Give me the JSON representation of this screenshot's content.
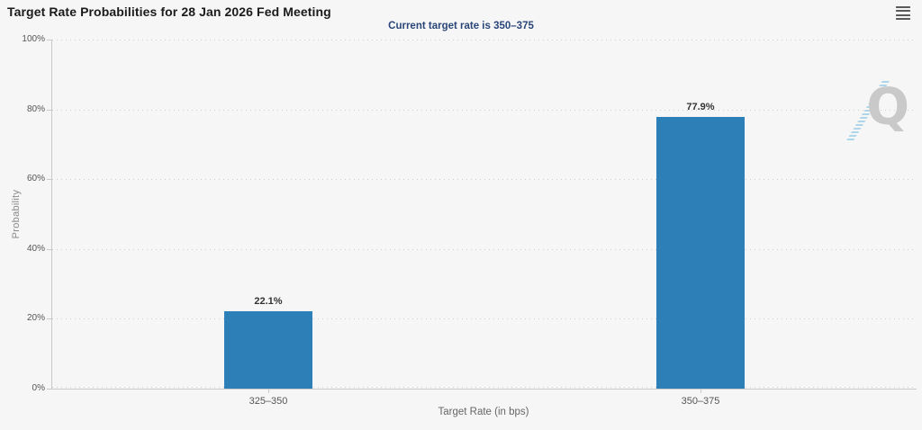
{
  "header": {
    "title": "Target Rate Probabilities for 28 Jan 2026 Fed Meeting",
    "subtitle": "Current target rate is 350–375"
  },
  "watermark": {
    "letter": "Q"
  },
  "colors": {
    "background": "#f6f6f6",
    "bar": "#2d7fb8",
    "subtitle_text": "#2a4679",
    "axis_line": "#c9c9c9",
    "gridline": "#cdcdcd",
    "watermark_letter": "#c9c9c9",
    "watermark_stripes": "#a9d4e8"
  },
  "chart_data": {
    "type": "bar",
    "title": "Target Rate Probabilities for 28 Jan 2026 Fed Meeting",
    "subtitle": "Current target rate is 350–375",
    "categories": [
      "325–350",
      "350–375"
    ],
    "values": [
      22.1,
      77.9
    ],
    "value_labels": [
      "22.1%",
      "77.9%"
    ],
    "xlabel": "Target Rate (in bps)",
    "ylabel": "Probability",
    "ylim": [
      0,
      100
    ],
    "yticks": [
      0,
      20,
      40,
      60,
      80,
      100
    ],
    "ytick_labels": [
      "0%",
      "20%",
      "40%",
      "60%",
      "80%",
      "100%"
    ],
    "grid": "horizontal-dotted",
    "legend": "none",
    "bar_color": "#2d7fb8"
  }
}
